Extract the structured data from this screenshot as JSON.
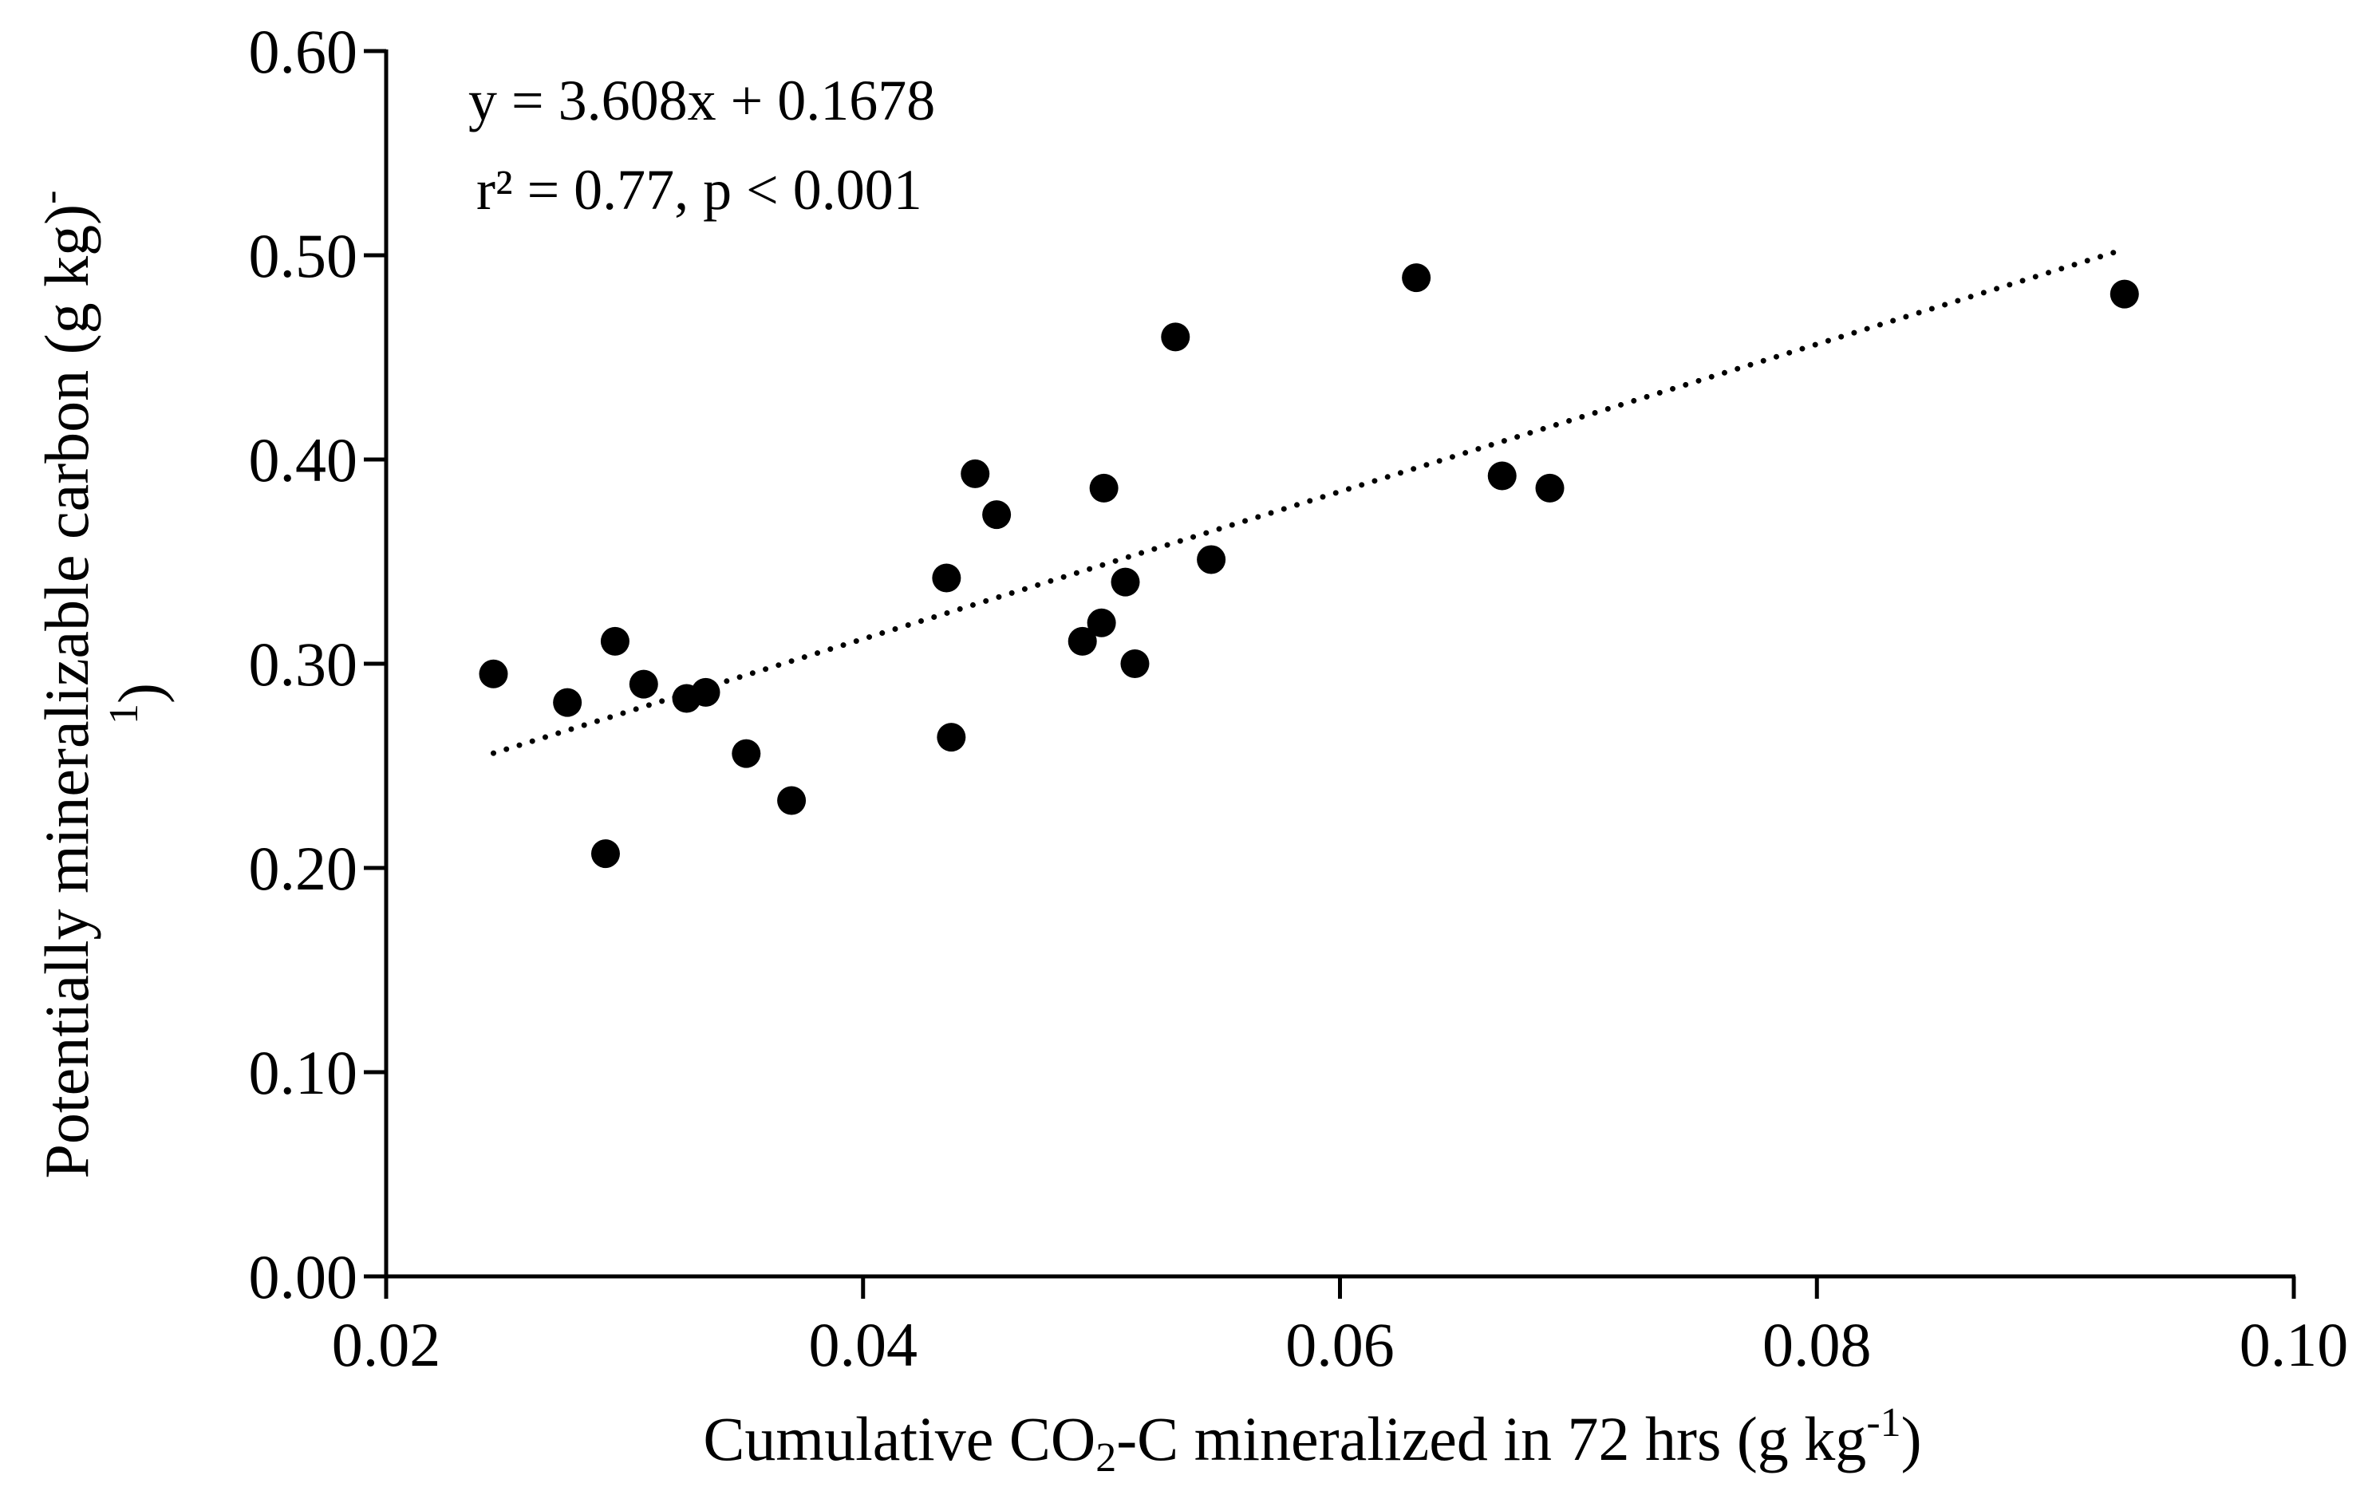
{
  "chart_data": {
    "type": "scatter",
    "title": "",
    "xlabel": {
      "pre": "Cumulative CO",
      "sub": "2",
      "mid": "-C mineralized in 72 hrs (g kg",
      "sup": "-1",
      "post": ")"
    },
    "ylabel": {
      "line1_pre": "Potentially mineralizable carbon (g kg)",
      "line1_sup": "-",
      "line2_sup": "1",
      "line2_post": ")"
    },
    "xlim": [
      0.02,
      0.1
    ],
    "ylim": [
      0.0,
      0.6
    ],
    "x_ticks": [
      0.02,
      0.04,
      0.06,
      0.08,
      0.1
    ],
    "x_tick_labels": [
      "0.02",
      "0.04",
      "0.06",
      "0.08",
      "0.10"
    ],
    "y_ticks": [
      0.0,
      0.1,
      0.2,
      0.3,
      0.4,
      0.5,
      0.6
    ],
    "y_tick_labels": [
      "0.00",
      "0.10",
      "0.20",
      "0.30",
      "0.40",
      "0.50",
      "0.60"
    ],
    "points": [
      {
        "x": 0.0245,
        "y": 0.295
      },
      {
        "x": 0.0276,
        "y": 0.281
      },
      {
        "x": 0.0292,
        "y": 0.207
      },
      {
        "x": 0.0296,
        "y": 0.311
      },
      {
        "x": 0.0308,
        "y": 0.29
      },
      {
        "x": 0.0326,
        "y": 0.283
      },
      {
        "x": 0.0334,
        "y": 0.286
      },
      {
        "x": 0.0351,
        "y": 0.256
      },
      {
        "x": 0.037,
        "y": 0.233
      },
      {
        "x": 0.0435,
        "y": 0.342
      },
      {
        "x": 0.0437,
        "y": 0.264
      },
      {
        "x": 0.0447,
        "y": 0.393
      },
      {
        "x": 0.0456,
        "y": 0.373
      },
      {
        "x": 0.0492,
        "y": 0.311
      },
      {
        "x": 0.05,
        "y": 0.32
      },
      {
        "x": 0.0501,
        "y": 0.386
      },
      {
        "x": 0.051,
        "y": 0.34
      },
      {
        "x": 0.0514,
        "y": 0.3
      },
      {
        "x": 0.0531,
        "y": 0.46
      },
      {
        "x": 0.0546,
        "y": 0.351
      },
      {
        "x": 0.0632,
        "y": 0.489
      },
      {
        "x": 0.0668,
        "y": 0.392
      },
      {
        "x": 0.0688,
        "y": 0.386
      },
      {
        "x": 0.0929,
        "y": 0.481
      }
    ],
    "trendline": {
      "style": "dotted",
      "slope": 3.608,
      "intercept": 0.1678,
      "x_range": [
        0.0245,
        0.0925
      ]
    },
    "annotation": {
      "equation": "y = 3.608x + 0.1678",
      "stats": "r² = 0.77, p < 0.001"
    },
    "grid": false,
    "legend": "none",
    "marker_color": "#000000"
  }
}
